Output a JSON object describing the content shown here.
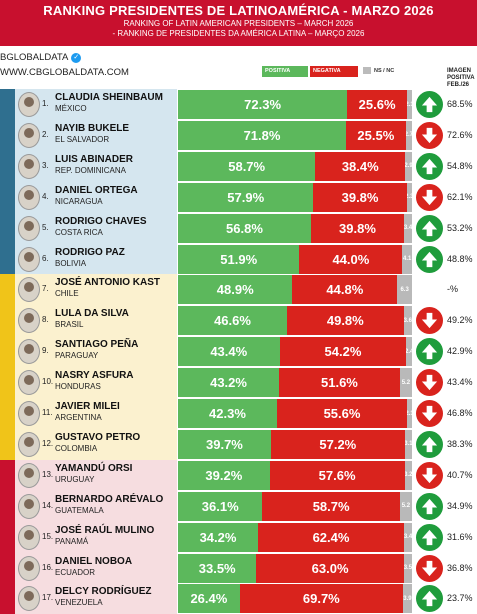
{
  "header": {
    "title": "RANKING PRESIDENTES DE LATINOAMÉRICA - MARZO 2026",
    "subtitle_en": "RANKING OF LATIN AMERICAN PRESIDENTS – MARCH 2026",
    "subtitle_pt": "- RANKING DE PRESIDENTES DA AMÉRICA LATINA – MARÇO 2026"
  },
  "brand": {
    "handle": "BGLOBALDATA",
    "site": "WWW.CBGLOBALDATA.COM"
  },
  "legend": {
    "positive": "POSITIVA",
    "negative": "NEGATIVA",
    "ns": "NS / NC"
  },
  "image_col_header": "IMAGEN POSITIVA FEB./26",
  "colors": {
    "positive": "#5cb85c",
    "negative": "#d9231d",
    "ns": "#b9b9b9",
    "up": "#1f9c3c",
    "down": "#d9231d"
  },
  "sections": [
    {
      "color": "#2f6f8f",
      "bg": "#d5e6ef"
    },
    {
      "color": "#f0c419",
      "bg": "#fbf1cf"
    },
    {
      "color": "#c8102e",
      "bg": "#f6dde0"
    }
  ],
  "chart_data": {
    "type": "bar",
    "stacked": true,
    "title": "RANKING PRESIDENTES DE LATINOAMÉRICA - MARZO 2026",
    "series_names": [
      "POSITIVA",
      "NEGATIVA",
      "NS / NC"
    ],
    "rows": [
      {
        "rank": "1.",
        "name": "CLAUDIA SHEINBAUM",
        "country": "MÉXICO",
        "positive": 72.3,
        "negative": 25.6,
        "ns": 2.1,
        "positive_label": "72.3%",
        "negative_label": "25.6%",
        "ns_label": "2.1",
        "trend": "up",
        "prev": "68.5%"
      },
      {
        "rank": "2.",
        "name": "NAYIB BUKELE",
        "country": "EL SALVADOR",
        "positive": 71.8,
        "negative": 25.5,
        "ns": 2.7,
        "positive_label": "71.8%",
        "negative_label": "25.5%",
        "ns_label": "2.7",
        "trend": "down",
        "prev": "72.6%"
      },
      {
        "rank": "3.",
        "name": "LUIS ABINADER",
        "country": "REP. DOMINICANA",
        "positive": 58.7,
        "negative": 38.4,
        "ns": 2.9,
        "positive_label": "58.7%",
        "negative_label": "38.4%",
        "ns_label": "2.9",
        "trend": "up",
        "prev": "54.8%"
      },
      {
        "rank": "4.",
        "name": "DANIEL ORTEGA",
        "country": "NICARAGUA",
        "positive": 57.9,
        "negative": 39.8,
        "ns": 2.3,
        "positive_label": "57.9%",
        "negative_label": "39.8%",
        "ns_label": "2.3",
        "trend": "down",
        "prev": "62.1%"
      },
      {
        "rank": "5.",
        "name": "RODRIGO CHAVES",
        "country": "COSTA RICA",
        "positive": 56.8,
        "negative": 39.8,
        "ns": 3.4,
        "positive_label": "56.8%",
        "negative_label": "39.8%",
        "ns_label": "3.4",
        "trend": "up",
        "prev": "53.2%"
      },
      {
        "rank": "6.",
        "name": "RODRIGO PAZ",
        "country": "BOLIVIA",
        "positive": 51.9,
        "negative": 44.0,
        "ns": 4.1,
        "positive_label": "51.9%",
        "negative_label": "44.0%",
        "ns_label": "4.1",
        "trend": "up",
        "prev": "48.8%"
      },
      {
        "rank": "7.",
        "name": "JOSÉ ANTONIO KAST",
        "country": "CHILE",
        "positive": 48.9,
        "negative": 44.8,
        "ns": 6.3,
        "positive_label": "48.9%",
        "negative_label": "44.8%",
        "ns_label": "6.3",
        "trend": "none",
        "prev": "-%"
      },
      {
        "rank": "8.",
        "name": "LULA DA SILVA",
        "country": "BRASIL",
        "positive": 46.6,
        "negative": 49.8,
        "ns": 3.6,
        "positive_label": "46.6%",
        "negative_label": "49.8%",
        "ns_label": "3.6",
        "trend": "down",
        "prev": "49.2%"
      },
      {
        "rank": "9.",
        "name": "SANTIAGO PEÑA",
        "country": "PARAGUAY",
        "positive": 43.4,
        "negative": 54.2,
        "ns": 2.4,
        "positive_label": "43.4%",
        "negative_label": "54.2%",
        "ns_label": "2.4",
        "trend": "up",
        "prev": "42.9%"
      },
      {
        "rank": "10.",
        "name": "NASRY ASFURA",
        "country": "HONDURAS",
        "positive": 43.2,
        "negative": 51.6,
        "ns": 5.2,
        "positive_label": "43.2%",
        "negative_label": "51.6%",
        "ns_label": "5.2",
        "trend": "down",
        "prev": "43.4%"
      },
      {
        "rank": "11.",
        "name": "JAVIER MILEI",
        "country": "ARGENTINA",
        "positive": 42.3,
        "negative": 55.6,
        "ns": 2.1,
        "positive_label": "42.3%",
        "negative_label": "55.6%",
        "ns_label": "2.1",
        "trend": "down",
        "prev": "46.8%"
      },
      {
        "rank": "12.",
        "name": "GUSTAVO PETRO",
        "country": "COLOMBIA",
        "positive": 39.7,
        "negative": 57.2,
        "ns": 3.1,
        "positive_label": "39.7%",
        "negative_label": "57.2%",
        "ns_label": "3.1",
        "trend": "up",
        "prev": "38.3%"
      },
      {
        "rank": "13.",
        "name": "YAMANDÚ ORSI",
        "country": "URUGUAY",
        "positive": 39.2,
        "negative": 57.6,
        "ns": 3.2,
        "positive_label": "39.2%",
        "negative_label": "57.6%",
        "ns_label": "3.2",
        "trend": "down",
        "prev": "40.7%"
      },
      {
        "rank": "14.",
        "name": "BERNARDO ARÉVALO",
        "country": "GUATEMALA",
        "positive": 36.1,
        "negative": 58.7,
        "ns": 5.2,
        "positive_label": "36.1%",
        "negative_label": "58.7%",
        "ns_label": "5.2",
        "trend": "up",
        "prev": "34.9%"
      },
      {
        "rank": "15.",
        "name": "JOSÉ RAÚL MULINO",
        "country": "PANAMÁ",
        "positive": 34.2,
        "negative": 62.4,
        "ns": 3.4,
        "positive_label": "34.2%",
        "negative_label": "62.4%",
        "ns_label": "3.4",
        "trend": "up",
        "prev": "31.6%"
      },
      {
        "rank": "16.",
        "name": "DANIEL NOBOA",
        "country": "ECUADOR",
        "positive": 33.5,
        "negative": 63.0,
        "ns": 3.5,
        "positive_label": "33.5%",
        "negative_label": "63.0%",
        "ns_label": "3.5",
        "trend": "down",
        "prev": "36.8%"
      },
      {
        "rank": "17.",
        "name": "DELCY RODRÍGUEZ",
        "country": "VENEZUELA",
        "positive": 26.4,
        "negative": 69.7,
        "ns": 3.9,
        "positive_label": "26.4%",
        "negative_label": "69.7%",
        "ns_label": "3.9",
        "trend": "up",
        "prev": "23.7%"
      }
    ]
  }
}
